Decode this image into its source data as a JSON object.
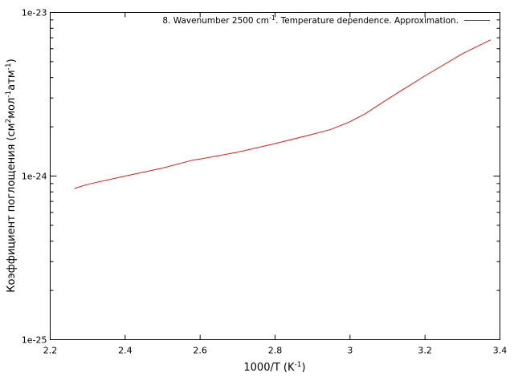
{
  "chart_data": {
    "type": "line",
    "xlabel": {
      "base": "1000/T (K",
      "sup": "-1",
      "tail": ")"
    },
    "ylabel": {
      "p1": "Коэффициент поглощения (см",
      "s1": "2",
      "p2": "мол",
      "s2": "-1",
      "p3": "атм",
      "s3": "-1",
      "p4": ")"
    },
    "xlim": [
      2.2,
      3.4
    ],
    "ylim": [
      1e-25,
      1e-23
    ],
    "yscale": "log",
    "xticks": [
      "2.2",
      "2.4",
      "2.6",
      "2.8",
      "3",
      "3.2",
      "3.4"
    ],
    "yticks": [
      "1e-25",
      "1e-24",
      "1e-23"
    ],
    "legend_position": "top-right",
    "series": [
      {
        "name": {
          "p1": "8. Wavenumber 2500 cm",
          "sup": "-1",
          "p2": ". Temperature dependence. Approximation."
        },
        "color": "#e41a1c",
        "x": [
          2.265,
          2.3,
          2.4,
          2.5,
          2.58,
          2.6,
          2.7,
          2.8,
          2.9,
          2.95,
          3.0,
          3.04,
          3.1,
          3.2,
          3.3,
          3.375
        ],
        "y": [
          8.4e-25,
          8.9e-25,
          1e-24,
          1.12e-24,
          1.25e-24,
          1.27e-24,
          1.4e-24,
          1.58e-24,
          1.8e-24,
          1.93e-24,
          2.15e-24,
          2.4e-24,
          2.95e-24,
          4.1e-24,
          5.6e-24,
          6.8e-24
        ]
      }
    ]
  }
}
